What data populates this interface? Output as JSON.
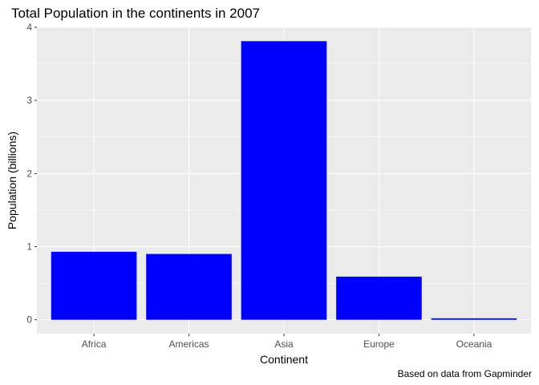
{
  "chart_data": {
    "type": "bar",
    "title": "Total Population in the continents in 2007",
    "xlabel": "Continent",
    "ylabel": "Population (billions)",
    "caption": "Based on data from Gapminder",
    "categories": [
      "Africa",
      "Americas",
      "Asia",
      "Europe",
      "Oceania"
    ],
    "values": [
      0.93,
      0.9,
      3.81,
      0.59,
      0.02
    ],
    "yticks": [
      0,
      1,
      2,
      3,
      4
    ],
    "ylim": [
      -0.19,
      4.0
    ],
    "grid": true,
    "legend": "none",
    "colors": {
      "bar": "#0000ff",
      "panel": "#ebebeb",
      "grid_major": "#ffffff",
      "tick": "#4d4d4d"
    }
  }
}
